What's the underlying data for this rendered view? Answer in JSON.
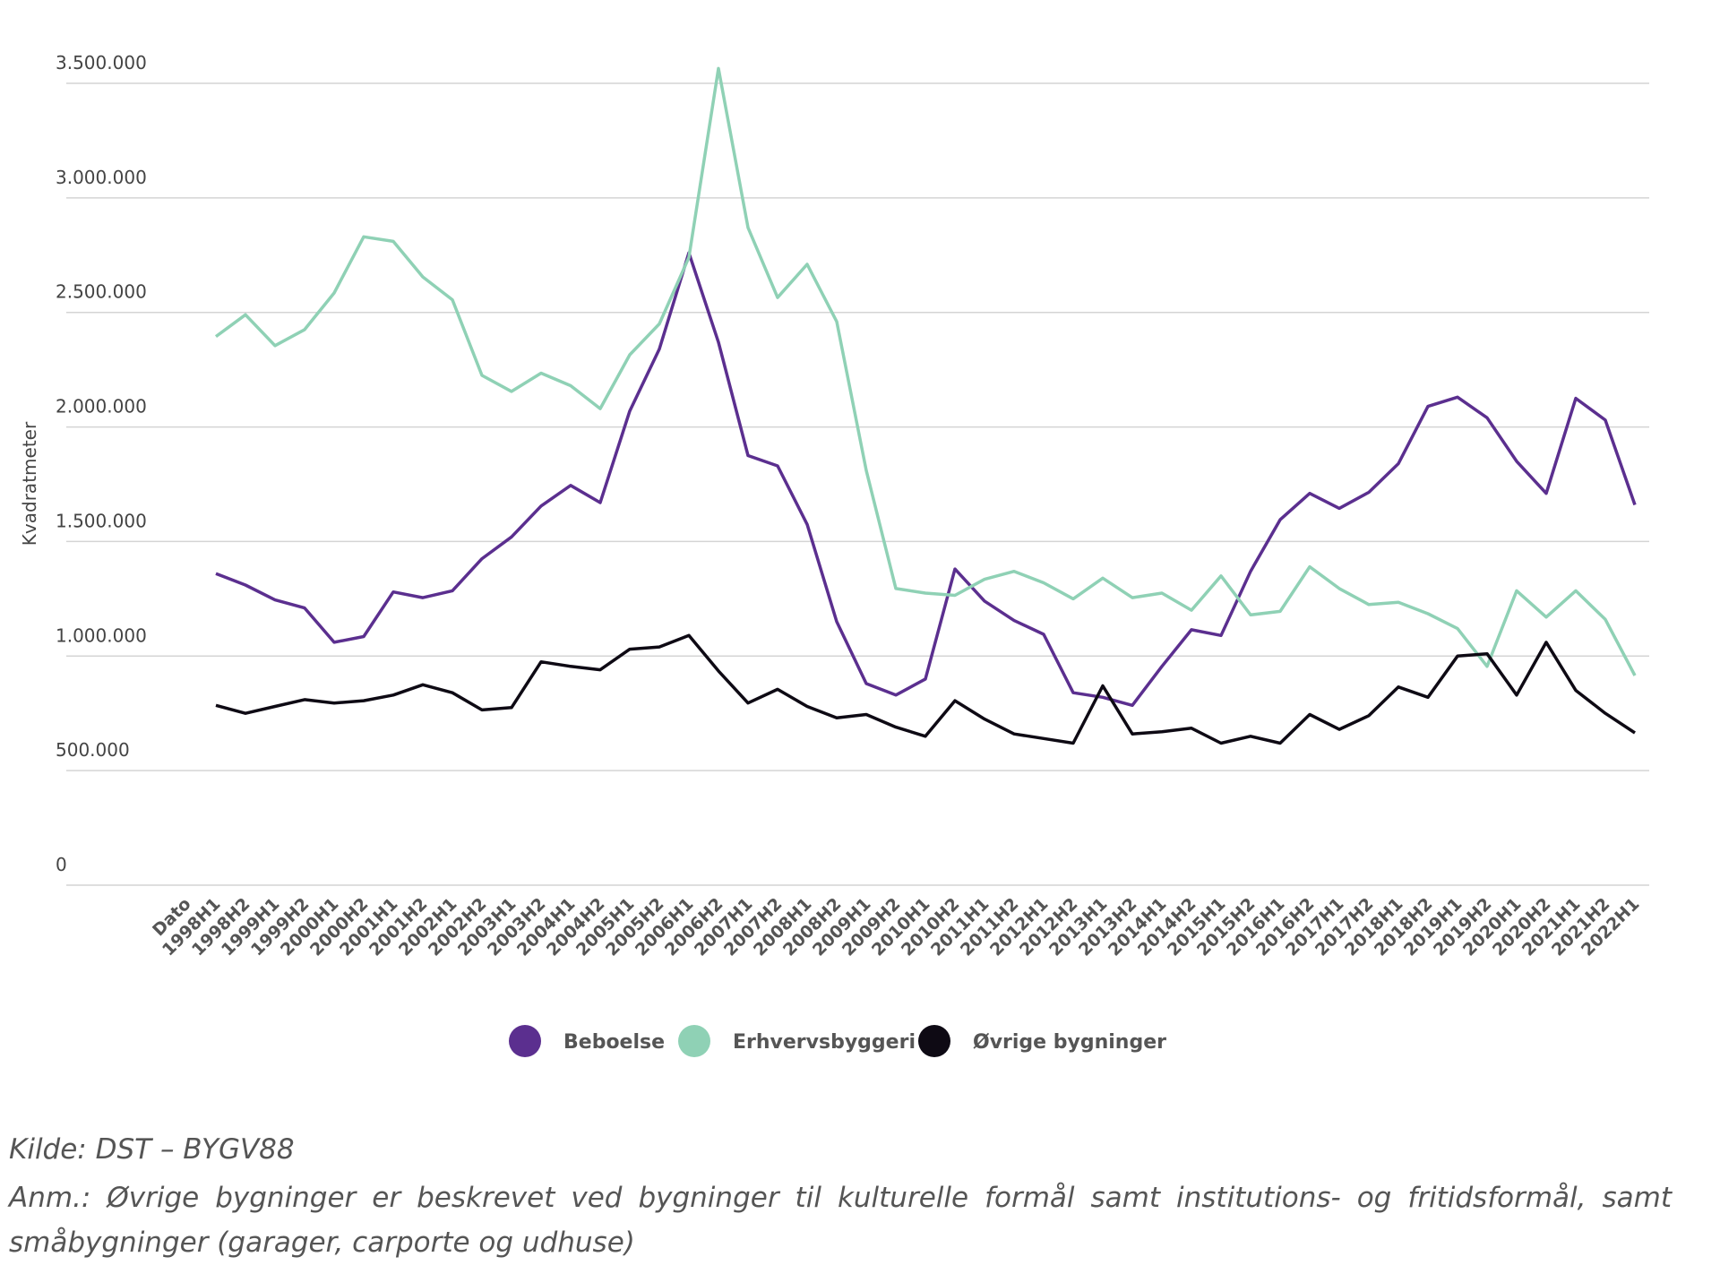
{
  "chart_data": {
    "type": "line",
    "ylabel": "Kvadratmeter",
    "categories": [
      "Dato",
      "1998H1",
      "1998H2",
      "1999H1",
      "1999H2",
      "2000H1",
      "2000H2",
      "2001H1",
      "2001H2",
      "2002H1",
      "2002H2",
      "2003H1",
      "2003H2",
      "2004H1",
      "2004H2",
      "2005H1",
      "2005H2",
      "2006H1",
      "2006H2",
      "2007H1",
      "2007H2",
      "2008H1",
      "2008H2",
      "2009H1",
      "2009H2",
      "2010H1",
      "2010H2",
      "2011H1",
      "2011H2",
      "2012H1",
      "2012H2",
      "2013H1",
      "2013H2",
      "2014H1",
      "2014H2",
      "2015H1",
      "2015H2",
      "2016H1",
      "2016H2",
      "2017H1",
      "2017H2",
      "2018H1",
      "2018H2",
      "2019H1",
      "2019H2",
      "2020H1",
      "2020H2",
      "2021H1",
      "2021H2",
      "2022H1"
    ],
    "series": [
      {
        "name": "Beboelse",
        "color": "#5b2f8f",
        "values": [
          null,
          1360000,
          1310000,
          1245000,
          1210000,
          1060000,
          1085000,
          1280000,
          1255000,
          1285000,
          1425000,
          1520000,
          1655000,
          1745000,
          1670000,
          2070000,
          2340000,
          2760000,
          2370000,
          1875000,
          1830000,
          1575000,
          1150000,
          880000,
          830000,
          900000,
          1380000,
          1240000,
          1155000,
          1095000,
          840000,
          820000,
          785000,
          955000,
          1115000,
          1090000,
          1370000,
          1595000,
          1710000,
          1645000,
          1715000,
          1840000,
          2090000,
          2130000,
          2040000,
          1850000,
          1710000,
          2125000,
          2030000,
          1660000
        ]
      },
      {
        "name": "Erhvervsbyggeri",
        "color": "#8fd1b5",
        "values": [
          null,
          2395000,
          2490000,
          2355000,
          2425000,
          2585000,
          2830000,
          2810000,
          2655000,
          2555000,
          2225000,
          2155000,
          2235000,
          2180000,
          2080000,
          2315000,
          2450000,
          2740000,
          3565000,
          2870000,
          2565000,
          2710000,
          2460000,
          1810000,
          1295000,
          1275000,
          1265000,
          1335000,
          1370000,
          1320000,
          1250000,
          1340000,
          1255000,
          1275000,
          1200000,
          1350000,
          1180000,
          1195000,
          1390000,
          1295000,
          1225000,
          1235000,
          1185000,
          1120000,
          955000,
          1285000,
          1170000,
          1285000,
          1160000,
          915000
        ]
      },
      {
        "name": "Øvrige bygninger",
        "color": "#0e0a14",
        "values": [
          null,
          785000,
          750000,
          780000,
          810000,
          795000,
          805000,
          830000,
          875000,
          840000,
          765000,
          775000,
          975000,
          955000,
          940000,
          1030000,
          1040000,
          1090000,
          935000,
          795000,
          855000,
          780000,
          730000,
          745000,
          690000,
          650000,
          805000,
          725000,
          660000,
          640000,
          620000,
          870000,
          660000,
          670000,
          685000,
          620000,
          650000,
          620000,
          745000,
          680000,
          740000,
          865000,
          820000,
          1000000,
          1010000,
          830000,
          1060000,
          850000,
          750000,
          665000
        ]
      }
    ],
    "ylim": [
      0,
      3500000
    ],
    "yticks": [
      0,
      {
        "value": 500000,
        "label": "500.000"
      },
      {
        "value": 1000000,
        "label": "1.000.000"
      },
      {
        "value": 1500000,
        "label": "1.500.000"
      },
      {
        "value": 2000000,
        "label": "2.000.000"
      },
      {
        "value": 2500000,
        "label": "2.500.000"
      },
      {
        "value": 3000000,
        "label": "3.000.000"
      },
      {
        "value": 3500000,
        "label": "3.500.000"
      }
    ],
    "grid": true,
    "legend": "bottom",
    "source": "Kilde: DST – BYGV88",
    "note": "Anm.: Øvrige bygninger er beskrevet ved bygninger til kulturelle formål samt institutions- og fritidsformål, samt småbygninger (garager, carporte og udhuse)"
  }
}
